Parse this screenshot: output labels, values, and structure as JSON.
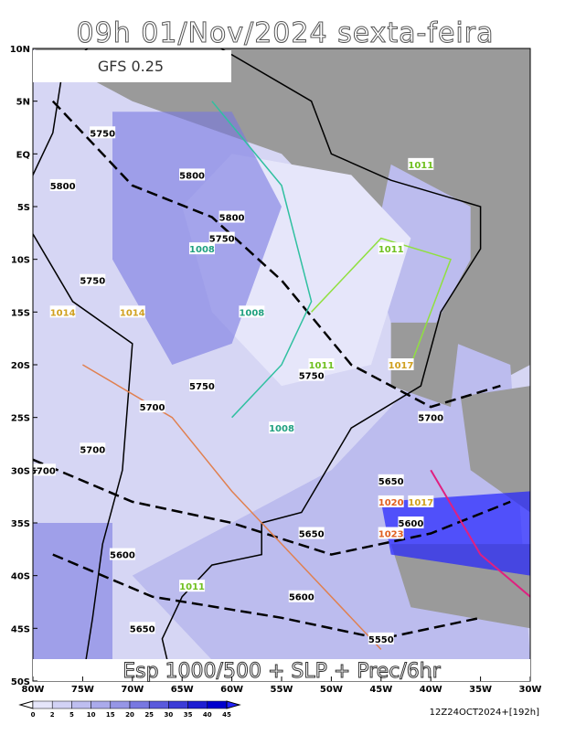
{
  "header": {
    "title": "09h 01/Nov/2024 sexta-feira",
    "model": "GFS 0.25",
    "product": "Esp 1000/500 + SLP + Prec/6hr",
    "run": "12Z24OCT2024+[192h]"
  },
  "map": {
    "lat_ticks": [
      {
        "value": 10,
        "label": "10N"
      },
      {
        "value": 5,
        "label": "5N"
      },
      {
        "value": 0,
        "label": "EQ"
      },
      {
        "value": -5,
        "label": "5S"
      },
      {
        "value": -10,
        "label": "10S"
      },
      {
        "value": -15,
        "label": "15S"
      },
      {
        "value": -20,
        "label": "20S"
      },
      {
        "value": -25,
        "label": "25S"
      },
      {
        "value": -30,
        "label": "30S"
      },
      {
        "value": -35,
        "label": "35S"
      },
      {
        "value": -40,
        "label": "40S"
      },
      {
        "value": -45,
        "label": "45S"
      },
      {
        "value": -50,
        "label": "50S"
      }
    ],
    "lon_ticks": [
      {
        "value": -80,
        "label": "80W"
      },
      {
        "value": -75,
        "label": "75W"
      },
      {
        "value": -70,
        "label": "70W"
      },
      {
        "value": -65,
        "label": "65W"
      },
      {
        "value": -60,
        "label": "60W"
      },
      {
        "value": -55,
        "label": "55W"
      },
      {
        "value": -50,
        "label": "50W"
      },
      {
        "value": -45,
        "label": "45W"
      },
      {
        "value": -40,
        "label": "40W"
      },
      {
        "value": -35,
        "label": "35W"
      },
      {
        "value": -30,
        "label": "30W"
      }
    ],
    "contour_labels": [
      "5750",
      "5800",
      "5800",
      "5800",
      "5750",
      "5750",
      "5750",
      "5700",
      "5700",
      "5700",
      "5750",
      "5700",
      "5650",
      "5650",
      "5600",
      "5600",
      "5600",
      "5650",
      "5550",
      "1008",
      "1008",
      "1008",
      "1011",
      "1011",
      "1011",
      "1014",
      "1014",
      "1017",
      "1017",
      "1020",
      "1023",
      "1011"
    ]
  },
  "colorbar": {
    "levels": [
      0,
      2,
      5,
      10,
      15,
      20,
      25,
      30,
      35,
      40,
      45
    ],
    "colors": [
      "#ffffff",
      "#e6e6fa",
      "#d2d2f5",
      "#bebef0",
      "#aaaaeb",
      "#9696e6",
      "#7878e1",
      "#5a5adc",
      "#3c3cd7",
      "#1e1ed2",
      "#0000cd",
      "#2222ff"
    ]
  }
}
